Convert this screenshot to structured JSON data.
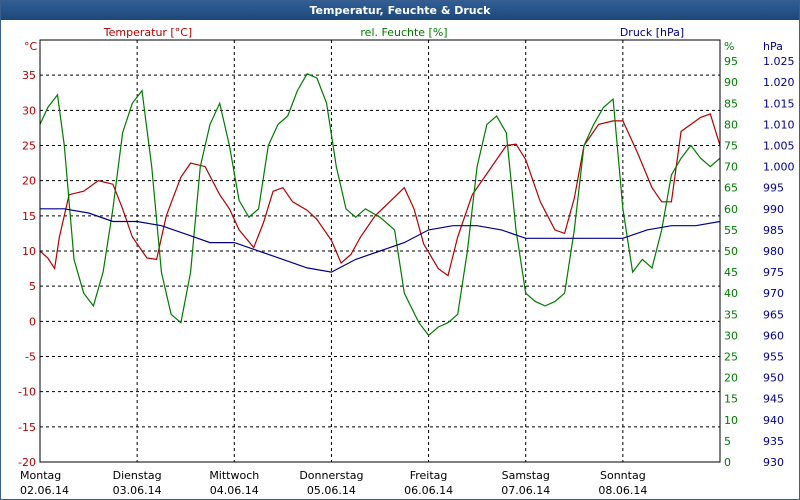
{
  "window": {
    "title": "Temperatur, Feuchte & Druck"
  },
  "colors": {
    "temperature": "#b00000",
    "humidity": "#007a00",
    "pressure": "#00008b",
    "titlebar": "#24528a"
  },
  "chart_data": {
    "type": "line",
    "title": "Temperatur, Feuchte & Druck",
    "grid": true,
    "xlim": [
      0,
      7
    ],
    "x_labels": [
      {
        "day": "Montag",
        "date": "02.06.14"
      },
      {
        "day": "Dienstag",
        "date": "03.06.14"
      },
      {
        "day": "Mittwoch",
        "date": "04.06.14"
      },
      {
        "day": "Donnerstag",
        "date": "05.06.14"
      },
      {
        "day": "Freitag",
        "date": "06.06.14"
      },
      {
        "day": "Samstag",
        "date": "07.06.14"
      },
      {
        "day": "Sonntag",
        "date": "08.06.14"
      }
    ],
    "axes": {
      "left": {
        "unit": "°C",
        "label": "Temperatur [°C]",
        "ylim": [
          -20,
          40
        ],
        "ticks": [
          "35",
          "30",
          "25",
          "20",
          "15",
          "10",
          "5",
          "0",
          "-5",
          "-10",
          "-15",
          "-20"
        ]
      },
      "right1": {
        "unit": "%",
        "label": "rel. Feuchte [%]",
        "ylim": [
          0,
          100
        ],
        "ticks": [
          "95",
          "90",
          "85",
          "80",
          "75",
          "70",
          "65",
          "60",
          "55",
          "50",
          "45",
          "40",
          "35",
          "30",
          "25",
          "20",
          "15",
          "10",
          "5",
          "0"
        ]
      },
      "right2": {
        "unit": "hPa",
        "label": "Druck [hPa]",
        "ylim": [
          930,
          1030
        ],
        "ticks": [
          "1.025",
          "1.020",
          "1.015",
          "1.010",
          "1.005",
          "1.000",
          "995",
          "990",
          "985",
          "980",
          "975",
          "970",
          "965",
          "960",
          "955",
          "950",
          "945",
          "940",
          "935",
          "930"
        ]
      }
    },
    "series": [
      {
        "name": "Temperatur [°C]",
        "axis": "left",
        "color": "#b00000",
        "x": [
          0,
          0.08,
          0.15,
          0.2,
          0.3,
          0.45,
          0.6,
          0.75,
          0.85,
          0.95,
          1.1,
          1.2,
          1.3,
          1.45,
          1.55,
          1.7,
          1.85,
          1.95,
          2.05,
          2.2,
          2.3,
          2.4,
          2.5,
          2.6,
          2.75,
          2.85,
          3.0,
          3.1,
          3.2,
          3.3,
          3.45,
          3.6,
          3.75,
          3.85,
          3.95,
          4.1,
          4.2,
          4.3,
          4.45,
          4.6,
          4.8,
          4.9,
          5.0,
          5.15,
          5.3,
          5.4,
          5.5,
          5.6,
          5.75,
          5.9,
          6.0,
          6.15,
          6.3,
          6.4,
          6.5,
          6.6,
          6.7,
          6.8,
          6.9,
          7.0
        ],
        "y": [
          10,
          9,
          7.5,
          12,
          18,
          18.5,
          20,
          19.5,
          16,
          12,
          9,
          8.8,
          15,
          20.5,
          22.5,
          22,
          18,
          16,
          13,
          10.5,
          14,
          18.5,
          19,
          17,
          15.8,
          14.5,
          11.5,
          8.3,
          9.5,
          12,
          15,
          17,
          19,
          16,
          11,
          7.5,
          6.5,
          12,
          18,
          21,
          25,
          25.2,
          23,
          17,
          13,
          12.5,
          17.5,
          25,
          28,
          28.5,
          28.5,
          24,
          19,
          17,
          17,
          27,
          28,
          29,
          29.5,
          25
        ]
      },
      {
        "name": "rel. Feuchte [%]",
        "axis": "right1",
        "color": "#007a00",
        "x": [
          0,
          0.08,
          0.18,
          0.25,
          0.35,
          0.45,
          0.55,
          0.65,
          0.75,
          0.85,
          0.95,
          1.05,
          1.15,
          1.25,
          1.35,
          1.45,
          1.55,
          1.65,
          1.75,
          1.85,
          1.95,
          2.05,
          2.15,
          2.25,
          2.35,
          2.45,
          2.55,
          2.65,
          2.75,
          2.85,
          2.95,
          3.05,
          3.15,
          3.25,
          3.35,
          3.5,
          3.65,
          3.75,
          3.9,
          4.0,
          4.1,
          4.2,
          4.3,
          4.4,
          4.5,
          4.6,
          4.7,
          4.8,
          4.9,
          5.0,
          5.1,
          5.2,
          5.3,
          5.4,
          5.5,
          5.6,
          5.7,
          5.8,
          5.9,
          6.0,
          6.1,
          6.2,
          6.3,
          6.4,
          6.5,
          6.6,
          6.7,
          6.8,
          6.9,
          7.0
        ],
        "y": [
          80,
          84,
          87,
          75,
          48,
          40,
          37,
          45,
          60,
          78,
          85,
          88,
          70,
          45,
          35,
          33,
          45,
          70,
          80,
          85,
          75,
          62,
          58,
          60,
          75,
          80,
          82,
          88,
          92,
          91,
          85,
          70,
          60,
          58,
          60,
          58,
          55,
          40,
          33,
          30,
          32,
          33,
          35,
          50,
          70,
          80,
          82,
          78,
          55,
          40,
          38,
          37,
          38,
          40,
          55,
          75,
          80,
          84,
          86,
          60,
          45,
          48,
          46,
          55,
          68,
          72,
          75,
          72,
          70,
          72
        ]
      },
      {
        "name": "Druck [hPa]",
        "axis": "right2",
        "color": "#00008b",
        "x": [
          0,
          0.25,
          0.5,
          0.75,
          1.0,
          1.25,
          1.5,
          1.75,
          2.0,
          2.25,
          2.5,
          2.75,
          3.0,
          3.25,
          3.5,
          3.75,
          4.0,
          4.25,
          4.5,
          4.75,
          5.0,
          5.25,
          5.5,
          5.75,
          6.0,
          6.25,
          6.5,
          6.75,
          7.0
        ],
        "y": [
          990,
          990,
          989,
          987,
          987,
          986,
          984,
          982,
          982,
          980,
          978,
          976,
          975,
          978,
          980,
          982,
          985,
          986,
          986,
          985,
          983,
          983,
          983,
          983,
          983,
          985,
          986,
          986,
          987
        ]
      }
    ]
  }
}
